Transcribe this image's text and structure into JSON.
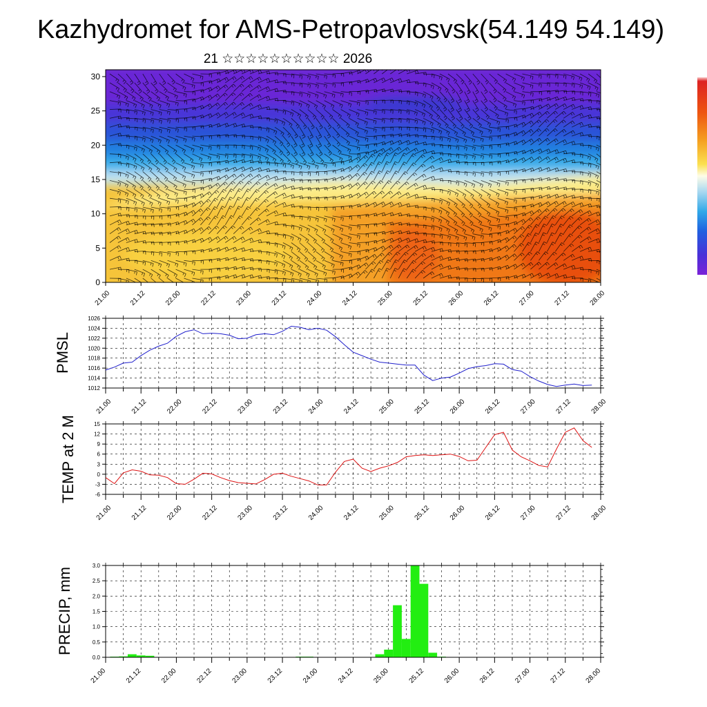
{
  "header": {
    "title": "Kazhydromet for AMS-Petropavlosvsk(54.149 54.149)",
    "date_text": "21 ☆☆☆☆☆☆☆☆☆☆ 2026"
  },
  "colors": {
    "pmsl_line": "#1f1fcc",
    "temp_line": "#dd1111",
    "precip_bar": "#22ee11",
    "frame": "#000000"
  },
  "chart_data": [
    {
      "type": "heatmap",
      "name": "cross-section",
      "title": "",
      "xlabel": "",
      "ylabel": "",
      "x_tick_labels": [
        "21.00",
        "21.12",
        "22.00",
        "22.12",
        "23.00",
        "23.12",
        "24.00",
        "24.12",
        "25.00",
        "25.12",
        "26.00",
        "26.12",
        "27.00",
        "27.12",
        "28.00"
      ],
      "y_tick_labels": [
        "0",
        "5",
        "10",
        "15",
        "20",
        "25",
        "30"
      ],
      "ylim": [
        0,
        31
      ],
      "colorbar": [
        "#dd3300",
        "#f06010",
        "#f5901e",
        "#f8b428",
        "#fad640",
        "#fcee80",
        "#c0e0f0",
        "#50b8e8",
        "#1e90e0",
        "#2048d8",
        "#5028d0",
        "#7a20d8"
      ],
      "wind_barbs": true
    },
    {
      "type": "line",
      "name": "pmsl",
      "ylabel": "PMSL",
      "x_tick_labels": [
        "21.00",
        "21.12",
        "22.00",
        "22.12",
        "23.00",
        "23.12",
        "24.00",
        "24.12",
        "25.00",
        "25.12",
        "26.00",
        "26.12",
        "27.00",
        "27.12",
        "28.00"
      ],
      "y_tick_labels": [
        "1012",
        "1014",
        "1016",
        "1018",
        "1020",
        "1022",
        "1024",
        "1026"
      ],
      "ylim": [
        1012,
        1026
      ],
      "x": [
        0,
        3,
        6,
        9,
        12,
        15,
        18,
        21,
        24,
        27,
        30,
        33,
        36,
        39,
        42,
        45,
        48,
        51,
        54,
        57,
        60,
        63,
        66,
        69,
        72,
        75,
        78,
        81,
        84,
        87,
        90,
        93,
        96,
        99,
        102,
        105,
        108,
        111,
        114,
        117,
        120,
        123,
        126,
        129,
        132,
        135,
        138,
        141,
        144,
        147,
        150,
        153,
        156,
        159,
        162,
        165
      ],
      "values": [
        1015.6,
        1016.2,
        1017.0,
        1017.2,
        1018.5,
        1019.6,
        1020.4,
        1021.0,
        1022.4,
        1023.3,
        1023.7,
        1022.9,
        1023.0,
        1022.9,
        1022.6,
        1021.9,
        1022.0,
        1022.7,
        1022.9,
        1022.7,
        1023.4,
        1024.4,
        1024.2,
        1023.7,
        1024.0,
        1023.6,
        1022.3,
        1020.7,
        1019.2,
        1018.5,
        1017.8,
        1017.2,
        1017.0,
        1016.8,
        1016.6,
        1016.6,
        1014.6,
        1013.5,
        1014.0,
        1014.2,
        1015.0,
        1015.9,
        1016.3,
        1016.5,
        1016.9,
        1016.8,
        1015.7,
        1015.4,
        1014.3,
        1013.4,
        1012.7,
        1012.3,
        1012.6,
        1012.8,
        1012.5,
        1012.6
      ]
    },
    {
      "type": "line",
      "name": "temp",
      "ylabel": "TEMP at 2 M",
      "x_tick_labels": [
        "21.00",
        "21.12",
        "22.00",
        "22.12",
        "23.00",
        "23.12",
        "24.00",
        "24.12",
        "25.00",
        "25.12",
        "26.00",
        "26.12",
        "27.00",
        "27.12",
        "28.00"
      ],
      "y_tick_labels": [
        "-6",
        "-3",
        "0",
        "3",
        "6",
        "9",
        "12",
        "15"
      ],
      "ylim": [
        -6,
        15
      ],
      "x": [
        0,
        3,
        6,
        9,
        12,
        15,
        18,
        21,
        24,
        27,
        30,
        33,
        36,
        39,
        42,
        45,
        48,
        51,
        54,
        57,
        60,
        63,
        66,
        69,
        72,
        75,
        78,
        81,
        84,
        87,
        90,
        93,
        96,
        99,
        102,
        105,
        108,
        111,
        114,
        117,
        120,
        123,
        126,
        129,
        132,
        135,
        138,
        141,
        144,
        147,
        150,
        153,
        156,
        159,
        162,
        165
      ],
      "values": [
        -1.0,
        -2.8,
        0.4,
        1.3,
        0.9,
        -0.2,
        -0.3,
        -1.0,
        -2.8,
        -3.0,
        -1.5,
        0.3,
        0.1,
        -1.0,
        -1.9,
        -2.5,
        -2.7,
        -2.9,
        -1.6,
        0.0,
        0.3,
        -0.6,
        -1.3,
        -2.0,
        -3.2,
        -3.2,
        0.6,
        3.8,
        4.5,
        1.8,
        0.8,
        1.8,
        2.5,
        3.5,
        5.2,
        5.6,
        5.8,
        5.6,
        5.8,
        6.0,
        5.3,
        4.0,
        4.2,
        8.0,
        11.8,
        12.5,
        7.2,
        5.2,
        4.0,
        2.6,
        2.2,
        7.5,
        12.5,
        13.8,
        10.0,
        8.0
      ]
    },
    {
      "type": "bar",
      "name": "precip",
      "ylabel": "PRECIP, mm",
      "x_tick_labels": [
        "21.00",
        "21.12",
        "22.00",
        "22.12",
        "23.00",
        "23.12",
        "24.00",
        "24.12",
        "25.00",
        "25.12",
        "26.00",
        "26.12",
        "27.00",
        "27.12",
        "28.00"
      ],
      "y_tick_labels": [
        "0.0",
        "0.5",
        "1.0",
        "1.5",
        "2.0",
        "2.5",
        "3.0"
      ],
      "ylim": [
        0,
        3.0
      ],
      "x": [
        3,
        6,
        9,
        12,
        15,
        18,
        66,
        69,
        72,
        93,
        96,
        99,
        102,
        105,
        108,
        111,
        114,
        123
      ],
      "values": [
        0.02,
        0.03,
        0.1,
        0.06,
        0.05,
        0.01,
        0.02,
        0.02,
        0.01,
        0.1,
        0.25,
        1.7,
        0.6,
        3.0,
        2.4,
        0.15,
        0.02,
        0.01
      ]
    }
  ]
}
